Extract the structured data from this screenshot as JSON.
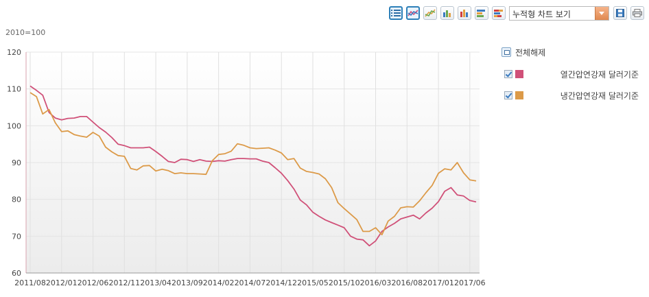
{
  "toolbar": {
    "buttons": [
      {
        "name": "list-view-icon",
        "active": true
      },
      {
        "name": "line-chart-icon",
        "active": true
      },
      {
        "name": "stacked-line-icon",
        "active": false
      },
      {
        "name": "bar-chart-icon",
        "active": false
      },
      {
        "name": "stacked-bar-icon",
        "active": false
      },
      {
        "name": "horizontal-bar-icon",
        "active": false
      },
      {
        "name": "stacked-horizontal-bar-icon",
        "active": false
      }
    ],
    "chart_type_select": "누적형 차트 보기",
    "save_icon": "save-icon",
    "print_icon": "print-icon"
  },
  "unit_label": "2010=100",
  "legend": {
    "clear_all": "전체해제",
    "items": [
      {
        "label": "열간압연강재 달러기준",
        "color": "#d05078",
        "checked": true
      },
      {
        "label": "냉간압연강재 달러기준",
        "color": "#dc9a48",
        "checked": true
      }
    ]
  },
  "chart_data": {
    "type": "line",
    "title": "",
    "xlabel": "",
    "ylabel": "2010=100",
    "ylim": [
      60,
      120
    ],
    "yticks": [
      60,
      70,
      80,
      90,
      100,
      110,
      120
    ],
    "grid": true,
    "legend_position": "right",
    "x_tick_labels": [
      "2011/08",
      "2012/01",
      "2012/06",
      "2012/11",
      "2013/04",
      "2013/09",
      "2014/02",
      "2014/07",
      "2014/12",
      "2015/05",
      "2015/10",
      "2016/03",
      "2016/08",
      "2017/01",
      "2017/06"
    ],
    "x": [
      "2011/08",
      "2011/09",
      "2011/10",
      "2011/11",
      "2011/12",
      "2012/01",
      "2012/02",
      "2012/03",
      "2012/04",
      "2012/05",
      "2012/06",
      "2012/07",
      "2012/08",
      "2012/09",
      "2012/10",
      "2012/11",
      "2012/12",
      "2013/01",
      "2013/02",
      "2013/03",
      "2013/04",
      "2013/05",
      "2013/06",
      "2013/07",
      "2013/08",
      "2013/09",
      "2013/10",
      "2013/11",
      "2013/12",
      "2014/01",
      "2014/02",
      "2014/03",
      "2014/04",
      "2014/05",
      "2014/06",
      "2014/07",
      "2014/08",
      "2014/09",
      "2014/10",
      "2014/11",
      "2014/12",
      "2015/01",
      "2015/02",
      "2015/03",
      "2015/04",
      "2015/05",
      "2015/06",
      "2015/07",
      "2015/08",
      "2015/09",
      "2015/10",
      "2015/11",
      "2015/12",
      "2016/01",
      "2016/02",
      "2016/03",
      "2016/04",
      "2016/05",
      "2016/06",
      "2016/07",
      "2016/08",
      "2016/09",
      "2016/10",
      "2016/11",
      "2016/12",
      "2017/01",
      "2017/02",
      "2017/03",
      "2017/04",
      "2017/05",
      "2017/06",
      "2017/07"
    ],
    "series": [
      {
        "name": "열간압연강재 달러기준",
        "color": "#d05078",
        "values": [
          110.8,
          109.6,
          108.3,
          103.6,
          102.1,
          101.6,
          102.0,
          102.1,
          102.5,
          102.5,
          101.0,
          99.5,
          98.3,
          96.8,
          95.0,
          94.6,
          94.0,
          94.0,
          94.0,
          94.2,
          93.0,
          91.7,
          90.3,
          90.0,
          90.9,
          90.8,
          90.3,
          90.8,
          90.4,
          90.3,
          90.5,
          90.4,
          90.8,
          91.1,
          91.1,
          91.0,
          91.0,
          90.4,
          90.0,
          88.6,
          87.1,
          85.1,
          82.8,
          79.8,
          78.5,
          76.5,
          75.4,
          74.4,
          73.7,
          73.0,
          72.3,
          70.0,
          69.2,
          69.0,
          67.4,
          68.7,
          71.3,
          72.5,
          73.5,
          74.7,
          75.2,
          75.7,
          74.7,
          76.3,
          77.6,
          79.4,
          82.2,
          83.2,
          81.2,
          80.9,
          79.7,
          79.3
        ]
      },
      {
        "name": "냉간압연강재 달러기준",
        "color": "#dc9a48",
        "values": [
          109.0,
          107.9,
          103.2,
          104.4,
          100.8,
          98.4,
          98.6,
          97.6,
          97.2,
          96.9,
          98.2,
          97.2,
          94.2,
          92.9,
          91.9,
          91.7,
          88.4,
          88.0,
          89.1,
          89.2,
          87.7,
          88.2,
          87.8,
          87.0,
          87.2,
          87.0,
          87.0,
          86.9,
          86.8,
          90.5,
          92.2,
          92.4,
          93.1,
          95.1,
          94.7,
          94.0,
          93.8,
          93.9,
          94.0,
          93.4,
          92.6,
          90.8,
          91.1,
          88.5,
          87.6,
          87.3,
          86.9,
          85.6,
          83.2,
          79.1,
          77.5,
          76.0,
          74.5,
          71.3,
          71.3,
          72.3,
          70.4,
          74.1,
          75.4,
          77.7,
          78.0,
          77.9,
          79.6,
          81.8,
          83.8,
          87.1,
          88.3,
          88.0,
          90.0,
          87.2,
          85.3,
          85.0
        ]
      }
    ]
  }
}
